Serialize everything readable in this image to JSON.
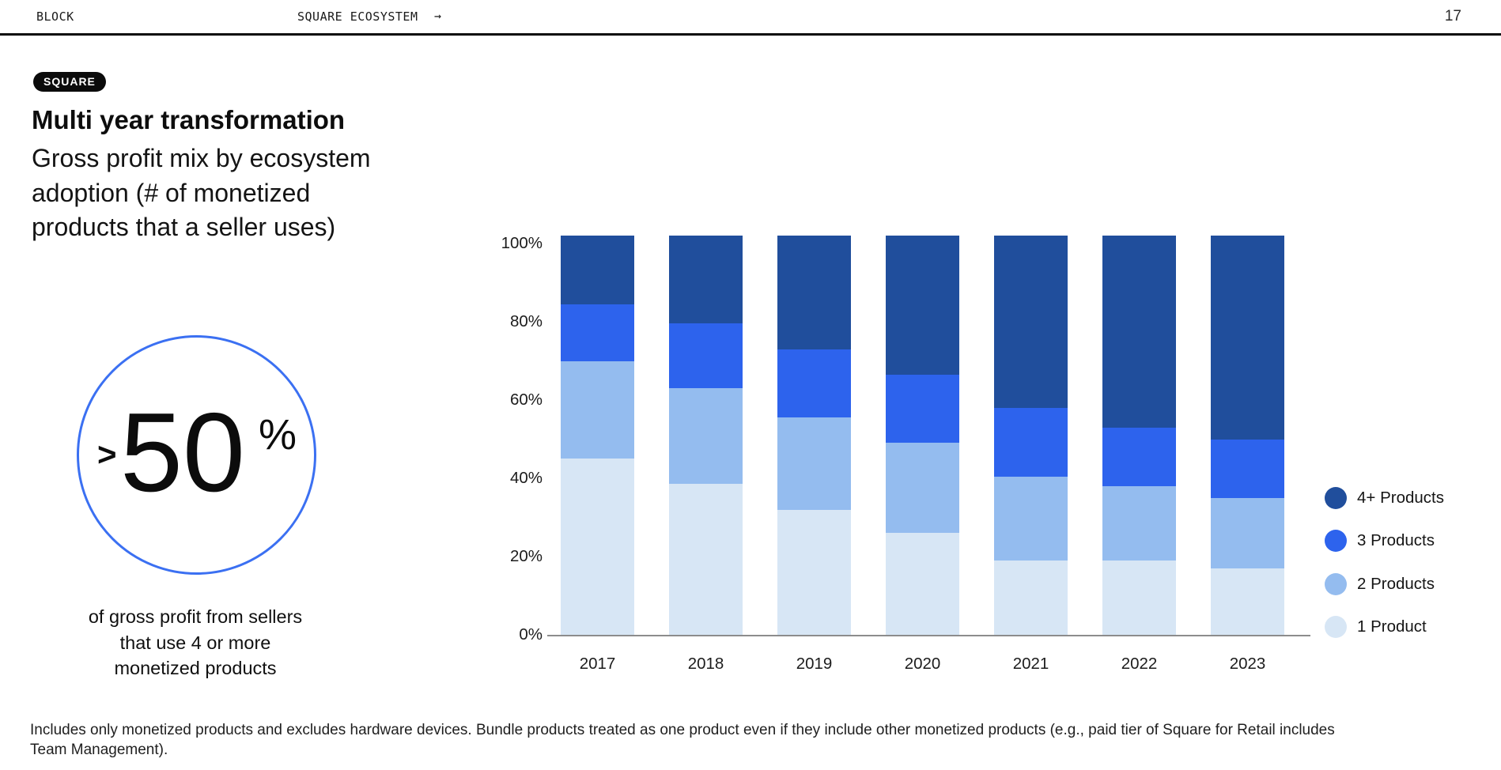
{
  "header": {
    "brand": "BLOCK",
    "section": "SQUARE ECOSYSTEM",
    "arrow": "→",
    "page_number": "17"
  },
  "badge_label": "SQUARE",
  "title": "Multi year transformation",
  "subtitle_lines": [
    "Gross profit mix by ecosystem",
    "adoption (# of monetized",
    "products that a seller uses)"
  ],
  "callout": {
    "prefix": ">",
    "value": "50",
    "suffix": "%",
    "circle_color": "#3B70F2",
    "caption_lines": [
      "of gross profit from sellers",
      "that use 4 or more",
      "monetized products"
    ]
  },
  "chart_data": {
    "type": "bar",
    "variant": "stacked-100",
    "title": "Gross profit mix by ecosystem adoption (# of monetized products that a seller uses)",
    "xlabel": "",
    "ylabel": "",
    "categories": [
      "2017",
      "2018",
      "2019",
      "2020",
      "2021",
      "2022",
      "2023"
    ],
    "unit": "%",
    "series": [
      {
        "name": "1 Product",
        "color": "#D7E6F5",
        "values": [
          45,
          38.5,
          32,
          26,
          19,
          19,
          17
        ]
      },
      {
        "name": "2 Products",
        "color": "#94BCEF",
        "values": [
          25,
          24.5,
          23.5,
          23,
          21.5,
          19,
          18
        ]
      },
      {
        "name": "3 Products",
        "color": "#2D63ED",
        "values": [
          14.5,
          16.5,
          17.5,
          17.5,
          17.5,
          15,
          15
        ]
      },
      {
        "name": "4+ Products",
        "color": "#204E9C",
        "values": [
          15.5,
          20.5,
          27,
          33.5,
          42,
          47,
          50
        ]
      }
    ],
    "y_ticks": [
      "0%",
      "20%",
      "40%",
      "60%",
      "80%",
      "100%"
    ],
    "ylim": [
      0,
      100
    ],
    "gridlines": false,
    "legend_position": "right",
    "legend": [
      "4+ Products",
      "3 Products",
      "2 Products",
      "1 Product"
    ]
  },
  "footnote_lines": [
    "Includes only monetized products and excludes hardware devices. Bundle products treated as one product even if they include other monetized products (e.g., paid tier of Square for Retail includes",
    "Team Management)."
  ]
}
